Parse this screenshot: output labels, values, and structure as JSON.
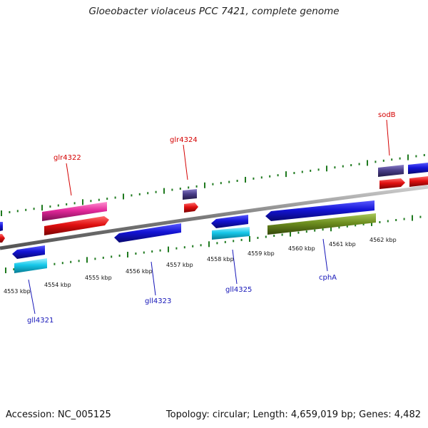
{
  "title": "Gloeobacter violaceus PCC 7421, complete genome",
  "footer": {
    "accession": "Accession: NC_005125",
    "summary": "Topology: circular; Length: 4,659,019 bp; Genes: 4,482"
  },
  "kbp_ticks": [
    "4553 kbp",
    "4554 kbp",
    "4555 kbp",
    "4556 kbp",
    "4557 kbp",
    "4558 kbp",
    "4559 kbp",
    "4560 kbp",
    "4561 kbp",
    "4562 kbp"
  ],
  "gene_labels": {
    "forward": [
      "glr4322",
      "glr4324",
      "sodB"
    ],
    "reverse": [
      "gll4321",
      "gll4323",
      "gll4325",
      "cphA"
    ]
  },
  "colors": {
    "backbone": "#7a7a7a",
    "tick": "#1f7a1f",
    "gene_blue": "#1414d6",
    "cds_red": "#e01010",
    "cds_cyan": "#17c8ea",
    "cds_olive": "#6d8e1f",
    "gene_pink": "#e2289a",
    "gene_purple": "#4b3f8a",
    "label_forward": "#d40000",
    "label_reverse": "#1515b8"
  }
}
